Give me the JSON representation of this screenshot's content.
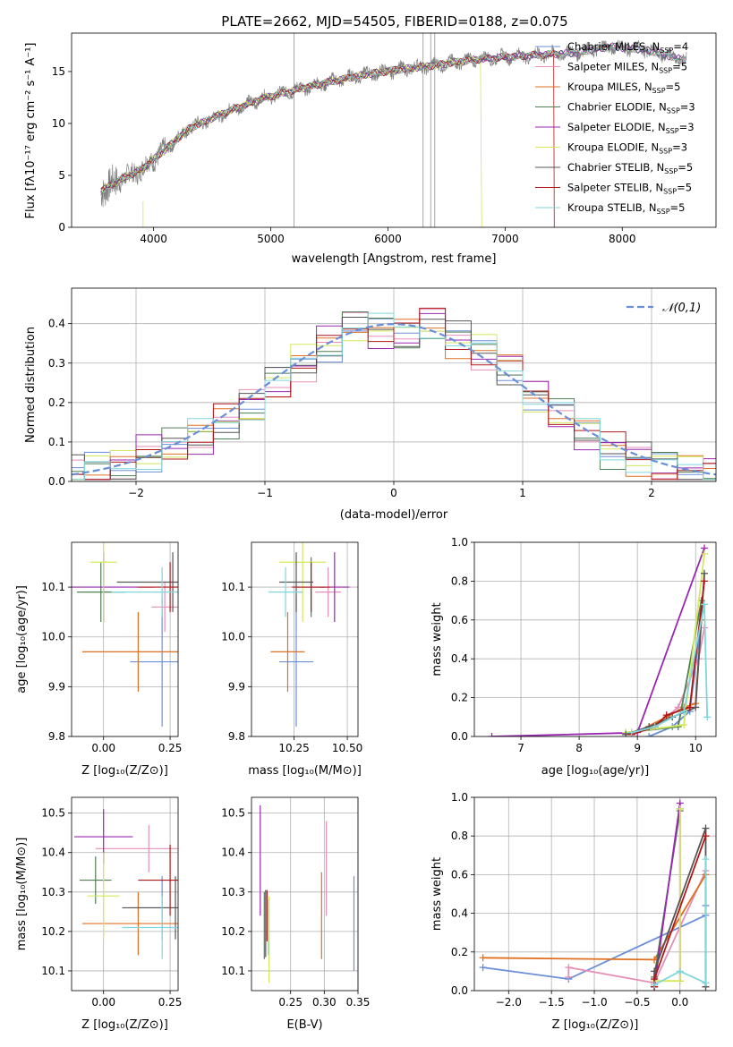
{
  "figure": {
    "title": "PLATE=2662, MJD=54505, FIBERID=0188, z=0.075"
  },
  "series": [
    {
      "name": "Chabrier MILES, N<sub>SSP</sub>=4",
      "color": "#6a8fd8"
    },
    {
      "name": "Salpeter MILES, N<sub>SSP</sub>=5",
      "color": "#e58fb8"
    },
    {
      "name": "Kroupa MILES, N<sub>SSP</sub>=5",
      "color": "#e07020"
    },
    {
      "name": "Chabrier ELODIE, N<sub>SSP</sub>=3",
      "color": "#4f7f55"
    },
    {
      "name": "Salpeter ELODIE, N<sub>SSP</sub>=3",
      "color": "#9a27b0"
    },
    {
      "name": "Kroupa ELODIE, N<sub>SSP</sub>=3",
      "color": "#d4e85a"
    },
    {
      "name": "Chabrier STELIB, N<sub>SSP</sub>=5",
      "color": "#555555"
    },
    {
      "name": "Salpeter STELIB, N<sub>SSP</sub>=5",
      "color": "#b01818"
    },
    {
      "name": "Kroupa STELIB, N<sub>SSP</sub>=5",
      "color": "#7fd6dc"
    }
  ],
  "chart_data": [
    {
      "id": "spectrum",
      "type": "line",
      "xlabel": "wavelength [Angstrom, rest frame]",
      "ylabel": "Flux [f_λ10^-17 erg cm^-2 s^-1 A^-1]",
      "xlim": [
        3300,
        8800
      ],
      "ylim": [
        0,
        18.7
      ],
      "xticks": [
        4000,
        5000,
        6000,
        7000,
        8000
      ],
      "yticks": [
        0,
        5,
        10,
        15
      ],
      "grid": false,
      "legend": "upper right",
      "x": [
        3550,
        3700,
        3900,
        4100,
        4300,
        4600,
        4900,
        5200,
        5500,
        5800,
        6100,
        6400,
        6700,
        7000,
        7300,
        7600,
        7900,
        8200,
        8500
      ],
      "y": [
        3.5,
        4.5,
        5.6,
        7.5,
        9.5,
        11.0,
        12.3,
        13.2,
        14.0,
        14.7,
        15.2,
        15.6,
        16.1,
        16.4,
        16.6,
        16.8,
        17.4,
        17.1,
        16.2
      ]
    },
    {
      "id": "residuals",
      "type": "histogram",
      "xlabel": "(data-model)/error",
      "ylabel": "Normed distribution",
      "xlim": [
        -2.5,
        2.5
      ],
      "ylim": [
        0,
        0.49
      ],
      "xticks": [
        -2,
        -1,
        0,
        1,
        2
      ],
      "yticks": [
        0.0,
        0.1,
        0.2,
        0.3,
        0.4
      ],
      "grid": true,
      "legend": "upper right",
      "legend_label": "𝒩(0,1)",
      "bin_edges": [
        -2.4,
        -2.2,
        -2.0,
        -1.8,
        -1.6,
        -1.4,
        -1.2,
        -1.0,
        -0.8,
        -0.6,
        -0.4,
        -0.2,
        0.0,
        0.2,
        0.4,
        0.6,
        0.8,
        1.0,
        1.2,
        1.4,
        1.6,
        1.8,
        2.0,
        2.2,
        2.4
      ],
      "values": [
        0.03,
        0.04,
        0.07,
        0.09,
        0.11,
        0.15,
        0.19,
        0.25,
        0.3,
        0.35,
        0.4,
        0.38,
        0.37,
        0.4,
        0.36,
        0.33,
        0.29,
        0.22,
        0.17,
        0.12,
        0.08,
        0.06,
        0.04,
        0.03
      ]
    },
    {
      "id": "age_vs_Z",
      "type": "errorbar",
      "xlabel": "Z [log10(Z/Z_sun)]",
      "ylabel": "age [log10(age/yr)]",
      "xlim": [
        -0.12,
        0.28
      ],
      "ylim": [
        9.8,
        10.19
      ],
      "xticks": [
        0.0,
        0.25
      ],
      "yticks": [
        9.8,
        9.9,
        10.0,
        10.1
      ],
      "grid": true,
      "points": [
        {
          "x": 0.22,
          "y": 9.95,
          "xerr": 0.12,
          "yerr": 0.13
        },
        {
          "x": 0.23,
          "y": 10.06,
          "xerr": 0.05,
          "yerr": 0.05
        },
        {
          "x": 0.13,
          "y": 9.97,
          "xerr": 0.21,
          "yerr": 0.08
        },
        {
          "x": -0.01,
          "y": 10.09,
          "xerr": 0.09,
          "yerr": 0.06
        },
        {
          "x": 0.0,
          "y": 10.1,
          "xerr": 0.19,
          "yerr": 0.07
        },
        {
          "x": 0.0,
          "y": 10.15,
          "xerr": 0.05,
          "yerr": 0.12
        },
        {
          "x": 0.26,
          "y": 10.11,
          "xerr": 0.21,
          "yerr": 0.06
        },
        {
          "x": 0.25,
          "y": 10.1,
          "xerr": 0.12,
          "yerr": 0.05
        },
        {
          "x": 0.22,
          "y": 10.09,
          "xerr": 0.19,
          "yerr": 0.05
        }
      ]
    },
    {
      "id": "age_vs_mass",
      "type": "errorbar",
      "xlabel": "mass [log10(M/M_sun)]",
      "ylabel": "",
      "xlim": [
        10.05,
        10.55
      ],
      "ylim": [
        9.8,
        10.19
      ],
      "xticks": [
        10.25,
        10.5
      ],
      "yticks": [
        9.8,
        9.9,
        10.0,
        10.1
      ],
      "grid": true,
      "points": [
        {
          "x": 10.26,
          "y": 9.95,
          "xerr": 0.08,
          "yerr": 0.13
        },
        {
          "x": 10.41,
          "y": 10.09,
          "xerr": 0.06,
          "yerr": 0.05
        },
        {
          "x": 10.22,
          "y": 9.97,
          "xerr": 0.08,
          "yerr": 0.08
        },
        {
          "x": 10.33,
          "y": 10.1,
          "xerr": 0.06,
          "yerr": 0.06
        },
        {
          "x": 10.44,
          "y": 10.1,
          "xerr": 0.07,
          "yerr": 0.07
        },
        {
          "x": 10.29,
          "y": 10.15,
          "xerr": 0.11,
          "yerr": 0.12
        },
        {
          "x": 10.26,
          "y": 10.11,
          "xerr": 0.08,
          "yerr": 0.06
        },
        {
          "x": 10.33,
          "y": 10.1,
          "xerr": 0.09,
          "yerr": 0.05
        },
        {
          "x": 10.21,
          "y": 10.09,
          "xerr": 0.08,
          "yerr": 0.05
        }
      ]
    },
    {
      "id": "weight_vs_age",
      "type": "line",
      "xlabel": "age [log10(age/yr)]",
      "ylabel": "mass weight",
      "xlim": [
        6.2,
        10.35
      ],
      "ylim": [
        0,
        1.0
      ],
      "xticks": [
        7,
        8,
        9,
        10
      ],
      "yticks": [
        0.0,
        0.2,
        0.4,
        0.6,
        0.8,
        1.0
      ],
      "grid": true,
      "series_x": [
        [
          9.2,
          9.6,
          9.9,
          10.1
        ],
        [
          8.9,
          9.3,
          9.7,
          10.05,
          10.15
        ],
        [
          8.9,
          9.5,
          9.8,
          10.0,
          10.1
        ],
        [
          8.8,
          9.7,
          10.1
        ],
        [
          6.5,
          9.0,
          10.15
        ],
        [
          8.8,
          9.8,
          10.15
        ],
        [
          8.8,
          9.2,
          9.6,
          10.0,
          10.15
        ],
        [
          8.9,
          9.3,
          9.5,
          9.9,
          10.15
        ],
        [
          8.9,
          9.3,
          9.8,
          10.15,
          10.2
        ]
      ],
      "series_y": [
        [
          0.0,
          0.05,
          0.13,
          0.6
        ],
        [
          0.02,
          0.05,
          0.15,
          0.4,
          0.56
        ],
        [
          0.01,
          0.1,
          0.15,
          0.17,
          0.6
        ],
        [
          0.02,
          0.05,
          0.7
        ],
        [
          0.0,
          0.02,
          0.97
        ],
        [
          0.02,
          0.06,
          0.94
        ],
        [
          0.01,
          0.05,
          0.1,
          0.15,
          0.84
        ],
        [
          0.01,
          0.05,
          0.11,
          0.15,
          0.8
        ],
        [
          0.02,
          0.05,
          0.13,
          0.68,
          0.1
        ]
      ]
    },
    {
      "id": "mass_vs_Z",
      "type": "errorbar",
      "xlabel": "Z [log10(Z/Z_sun)]",
      "ylabel": "mass [log10(M/M_sun)]",
      "xlim": [
        -0.12,
        0.28
      ],
      "ylim": [
        10.05,
        10.54
      ],
      "xticks": [
        0.0,
        0.25
      ],
      "yticks": [
        10.1,
        10.2,
        10.3,
        10.4,
        10.5
      ],
      "grid": true,
      "points": [
        {
          "x": 0.22,
          "y": 10.26,
          "xerr": 0.12,
          "yerr": 0.08
        },
        {
          "x": 0.17,
          "y": 10.41,
          "xerr": 0.2,
          "yerr": 0.06
        },
        {
          "x": 0.13,
          "y": 10.22,
          "xerr": 0.21,
          "yerr": 0.08
        },
        {
          "x": -0.03,
          "y": 10.33,
          "xerr": 0.06,
          "yerr": 0.06
        },
        {
          "x": 0.0,
          "y": 10.44,
          "xerr": 0.11,
          "yerr": 0.07
        },
        {
          "x": 0.0,
          "y": 10.29,
          "xerr": 0.06,
          "yerr": 0.11
        },
        {
          "x": 0.27,
          "y": 10.26,
          "xerr": 0.2,
          "yerr": 0.08
        },
        {
          "x": 0.25,
          "y": 10.33,
          "xerr": 0.12,
          "yerr": 0.09
        },
        {
          "x": 0.22,
          "y": 10.21,
          "xerr": 0.15,
          "yerr": 0.08
        }
      ]
    },
    {
      "id": "mass_vs_ebv",
      "type": "errorbar",
      "xlabel": "E(B-V)",
      "ylabel": "",
      "xlim": [
        0.192,
        0.35
      ],
      "ylim": [
        10.05,
        10.54
      ],
      "xticks": [
        0.25,
        0.3,
        0.35
      ],
      "yticks": [
        10.1,
        10.2,
        10.3,
        10.4,
        10.5
      ],
      "grid": true,
      "points": [
        {
          "x": 0.344,
          "y": 10.22,
          "xerr": 0,
          "yerr": 0.12
        },
        {
          "x": 0.303,
          "y": 10.36,
          "xerr": 0,
          "yerr": 0.12
        },
        {
          "x": 0.296,
          "y": 10.24,
          "xerr": 0,
          "yerr": 0.11
        },
        {
          "x": 0.211,
          "y": 10.215,
          "xerr": 0,
          "yerr": 0.085
        },
        {
          "x": 0.205,
          "y": 10.38,
          "xerr": 0,
          "yerr": 0.14
        },
        {
          "x": 0.218,
          "y": 10.18,
          "xerr": 0,
          "yerr": 0.11
        },
        {
          "x": 0.213,
          "y": 10.22,
          "xerr": 0,
          "yerr": 0.085
        },
        {
          "x": 0.215,
          "y": 10.24,
          "xerr": 0,
          "yerr": 0.065
        },
        {
          "x": 0.217,
          "y": 10.21,
          "xerr": 0,
          "yerr": 0.07
        }
      ]
    },
    {
      "id": "weight_vs_Z",
      "type": "line",
      "xlabel": "Z [log10(Z/Z_sun)]",
      "ylabel": "mass weight",
      "xlim": [
        -2.4,
        0.42
      ],
      "ylim": [
        0,
        1.0
      ],
      "xticks": [
        -2.0,
        -1.5,
        -1.0,
        -0.5,
        0.0
      ],
      "yticks": [
        0.0,
        0.2,
        0.4,
        0.6,
        0.8,
        1.0
      ],
      "grid": true,
      "series_x": [
        [
          -2.3,
          -1.3,
          0.3,
          0.3
        ],
        [
          -1.3,
          -1.3,
          -0.3,
          0.3
        ],
        [
          -2.3,
          -0.3,
          0.3,
          0.3
        ],
        [
          -0.3,
          -0.3,
          0.0,
          0.0
        ],
        [
          -0.3,
          0.0,
          0.0
        ],
        [
          0.0,
          0.0,
          -0.3
        ],
        [
          -0.3,
          -0.3,
          0.3,
          0.3
        ],
        [
          -0.3,
          -0.3,
          0.3
        ],
        [
          -0.3,
          0.0,
          0.3,
          0.3
        ]
      ],
      "series_y": [
        [
          0.12,
          0.06,
          0.39,
          0.44
        ],
        [
          0.07,
          0.12,
          0.04,
          0.62
        ],
        [
          0.17,
          0.16,
          0.6,
          0.02
        ],
        [
          0.02,
          0.07,
          0.93,
          0.94
        ],
        [
          0.02,
          0.97,
          0.05
        ],
        [
          0.94,
          0.05,
          0.05
        ],
        [
          0.03,
          0.1,
          0.84,
          0.02
        ],
        [
          0.02,
          0.06,
          0.8
        ],
        [
          0.03,
          0.1,
          0.04,
          0.68
        ]
      ]
    }
  ]
}
